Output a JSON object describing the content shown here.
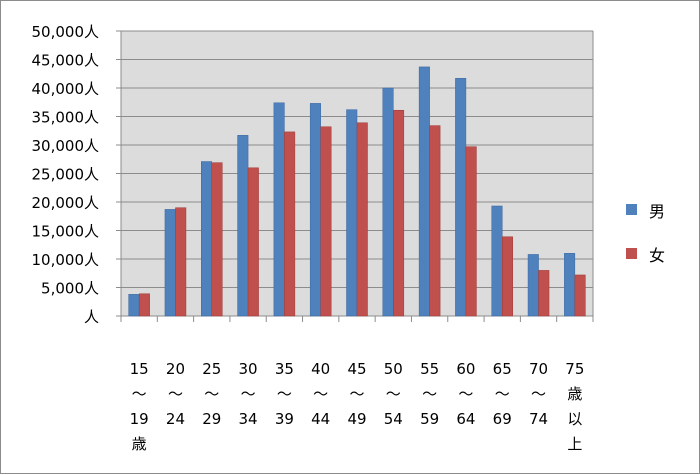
{
  "chart_data": {
    "type": "bar",
    "title": "",
    "xlabel": "",
    "ylabel": "",
    "ylim": [
      0,
      50000
    ],
    "y_ticks": [
      "人",
      "5,000人",
      "10,000人",
      "15,000人",
      "20,000人",
      "25,000人",
      "30,000人",
      "35,000人",
      "40,000人",
      "45,000人",
      "50,000人"
    ],
    "grid": true,
    "legend_position": "right",
    "categories": [
      [
        "15",
        "〜",
        "19",
        "歳"
      ],
      [
        "20",
        "〜",
        "24"
      ],
      [
        "25",
        "〜",
        "29"
      ],
      [
        "30",
        "〜",
        "34"
      ],
      [
        "35",
        "〜",
        "39"
      ],
      [
        "40",
        "〜",
        "44"
      ],
      [
        "45",
        "〜",
        "49"
      ],
      [
        "50",
        "〜",
        "54"
      ],
      [
        "55",
        "〜",
        "59"
      ],
      [
        "60",
        "〜",
        "64"
      ],
      [
        "65",
        "〜",
        "69"
      ],
      [
        "70",
        "〜",
        "74"
      ],
      [
        "75",
        "歳",
        "以",
        "上"
      ]
    ],
    "series": [
      {
        "name": "男",
        "color": "#4f81bd",
        "values": [
          3800,
          18700,
          27100,
          31700,
          37400,
          37300,
          36200,
          40000,
          43700,
          41700,
          19300,
          10800,
          11000
        ]
      },
      {
        "name": "女",
        "color": "#c0504d",
        "values": [
          3900,
          19000,
          26900,
          26000,
          32300,
          33200,
          33900,
          36100,
          33400,
          29700,
          13900,
          8000,
          7200
        ]
      }
    ]
  }
}
